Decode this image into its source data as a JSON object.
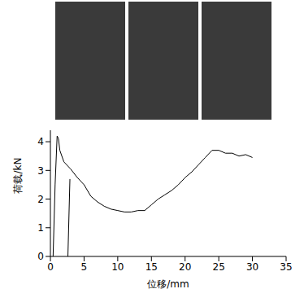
{
  "chart_data": {
    "type": "line",
    "x_label": "位移/mm",
    "y_label": "荷载/kN",
    "x": [
      0.4,
      0.7,
      1.0,
      1.2,
      1.4,
      2,
      3,
      4,
      5,
      6,
      7,
      8,
      9,
      10,
      11,
      12,
      13,
      14,
      15,
      16,
      17,
      18,
      19,
      20,
      21,
      22,
      23,
      24,
      25,
      26,
      27,
      28,
      29,
      30,
      2.75,
      2.6,
      2.9
    ],
    "values": [
      0,
      2.5,
      4.2,
      4.1,
      3.7,
      3.3,
      3.05,
      2.75,
      2.5,
      2.1,
      1.9,
      1.75,
      1.65,
      1.6,
      1.55,
      1.55,
      1.6,
      1.6,
      1.8,
      2.0,
      2.15,
      2.3,
      2.5,
      2.75,
      2.95,
      3.2,
      3.45,
      3.7,
      3.7,
      3.6,
      3.6,
      3.5,
      3.55,
      3.45,
      null,
      0,
      2.7
    ],
    "color": "#000000",
    "xlim": [
      0,
      35
    ],
    "xticks": [
      0,
      5,
      10,
      15,
      20,
      25,
      30,
      35
    ],
    "ylim": [
      0,
      4.4
    ],
    "yticks": [
      0,
      1,
      2,
      3,
      4
    ],
    "grid": false
  }
}
